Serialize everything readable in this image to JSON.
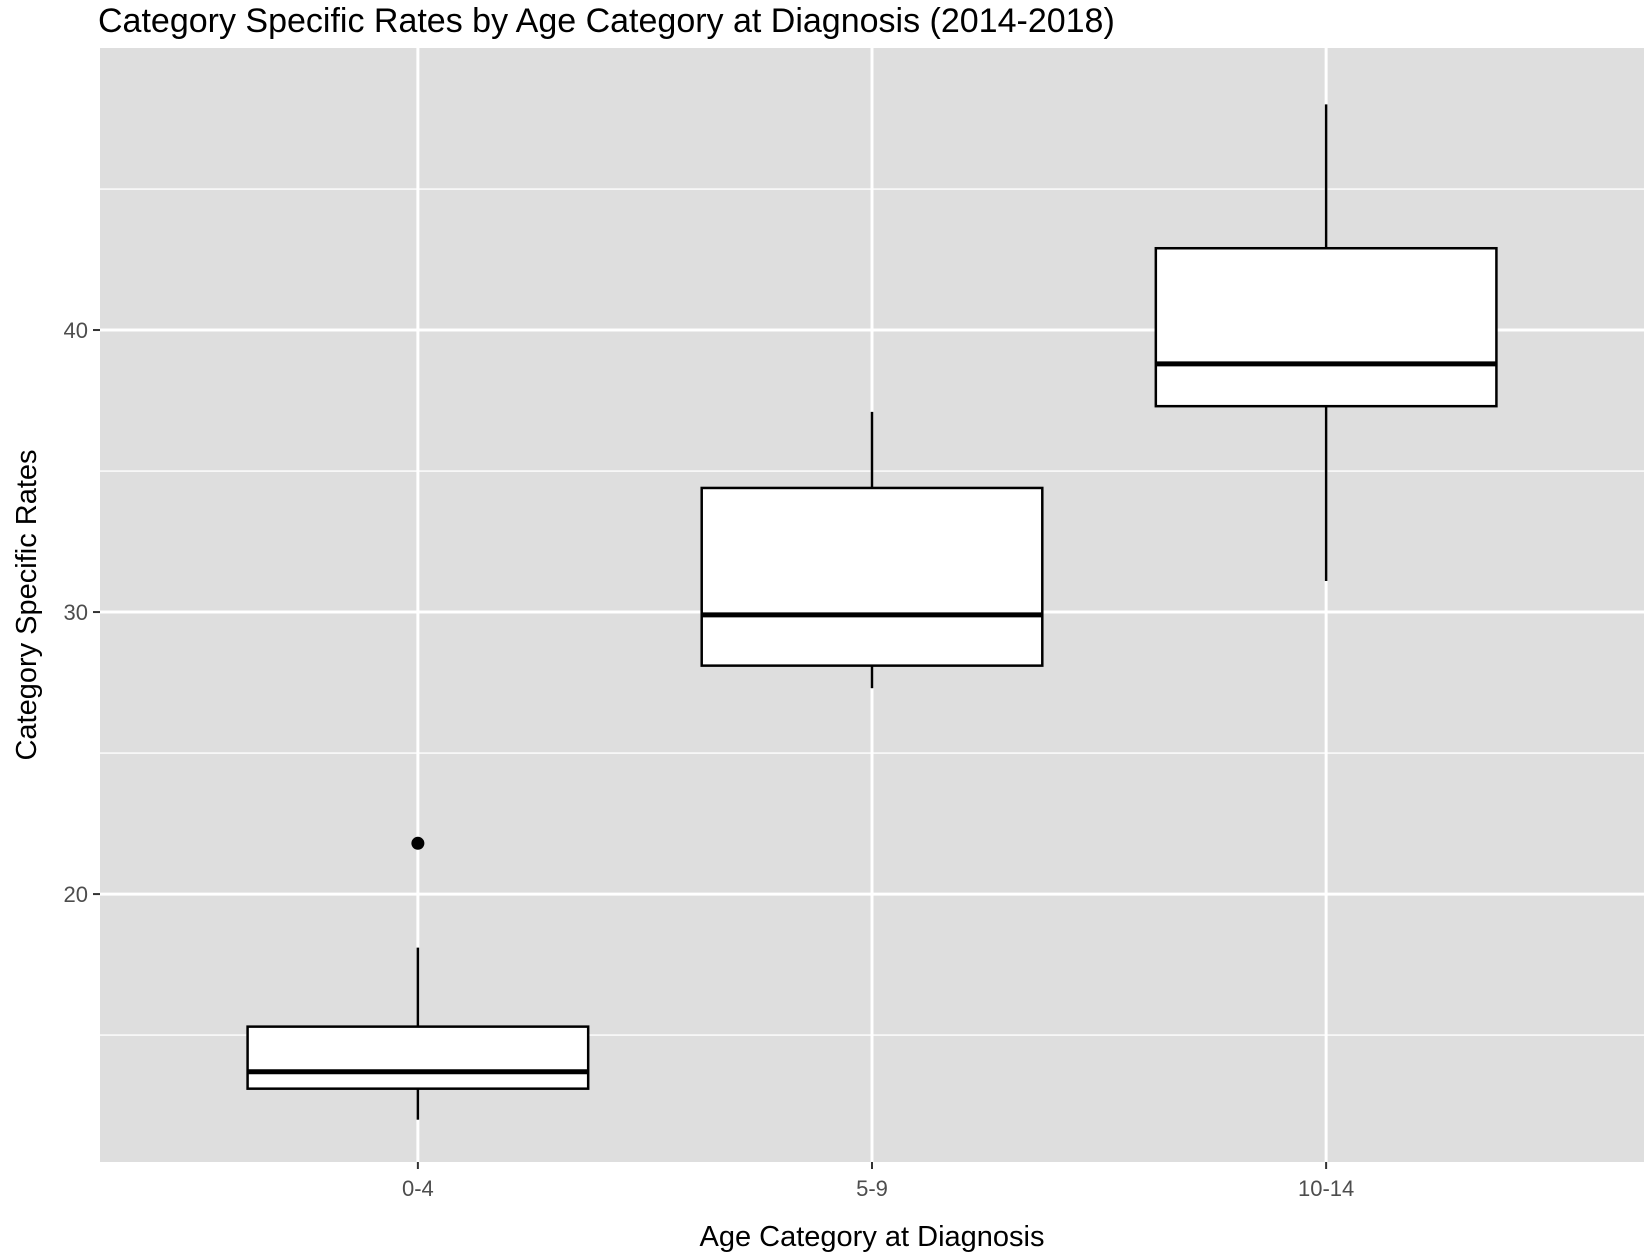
{
  "chart_data": {
    "type": "boxplot",
    "title": "Category Specific Rates by Age Category at Diagnosis (2014-2018)",
    "xlabel": "Age Category at Diagnosis",
    "ylabel": "Category Specific Rates",
    "categories": [
      "0-4",
      "5-9",
      "10-14"
    ],
    "yticks": [
      20,
      30,
      40
    ],
    "ylim": [
      10.5,
      50
    ],
    "grid": true,
    "legend": "none",
    "boxes": [
      {
        "category": "0-4",
        "whisker_low": 12.0,
        "q1": 13.1,
        "median": 13.7,
        "q3": 15.3,
        "whisker_high": 18.1,
        "outliers": [
          21.8
        ]
      },
      {
        "category": "5-9",
        "whisker_low": 27.3,
        "q1": 28.1,
        "median": 29.9,
        "q3": 34.4,
        "whisker_high": 37.1,
        "outliers": []
      },
      {
        "category": "10-14",
        "whisker_low": 31.1,
        "q1": 37.3,
        "median": 38.8,
        "q3": 42.9,
        "whisker_high": 48.0,
        "outliers": []
      }
    ],
    "colors": {
      "panel_background": "#dedede",
      "grid_line": "#ffffff",
      "box_fill": "#ffffff",
      "box_stroke": "#000000",
      "tick_text": "#4d4d4d"
    }
  }
}
